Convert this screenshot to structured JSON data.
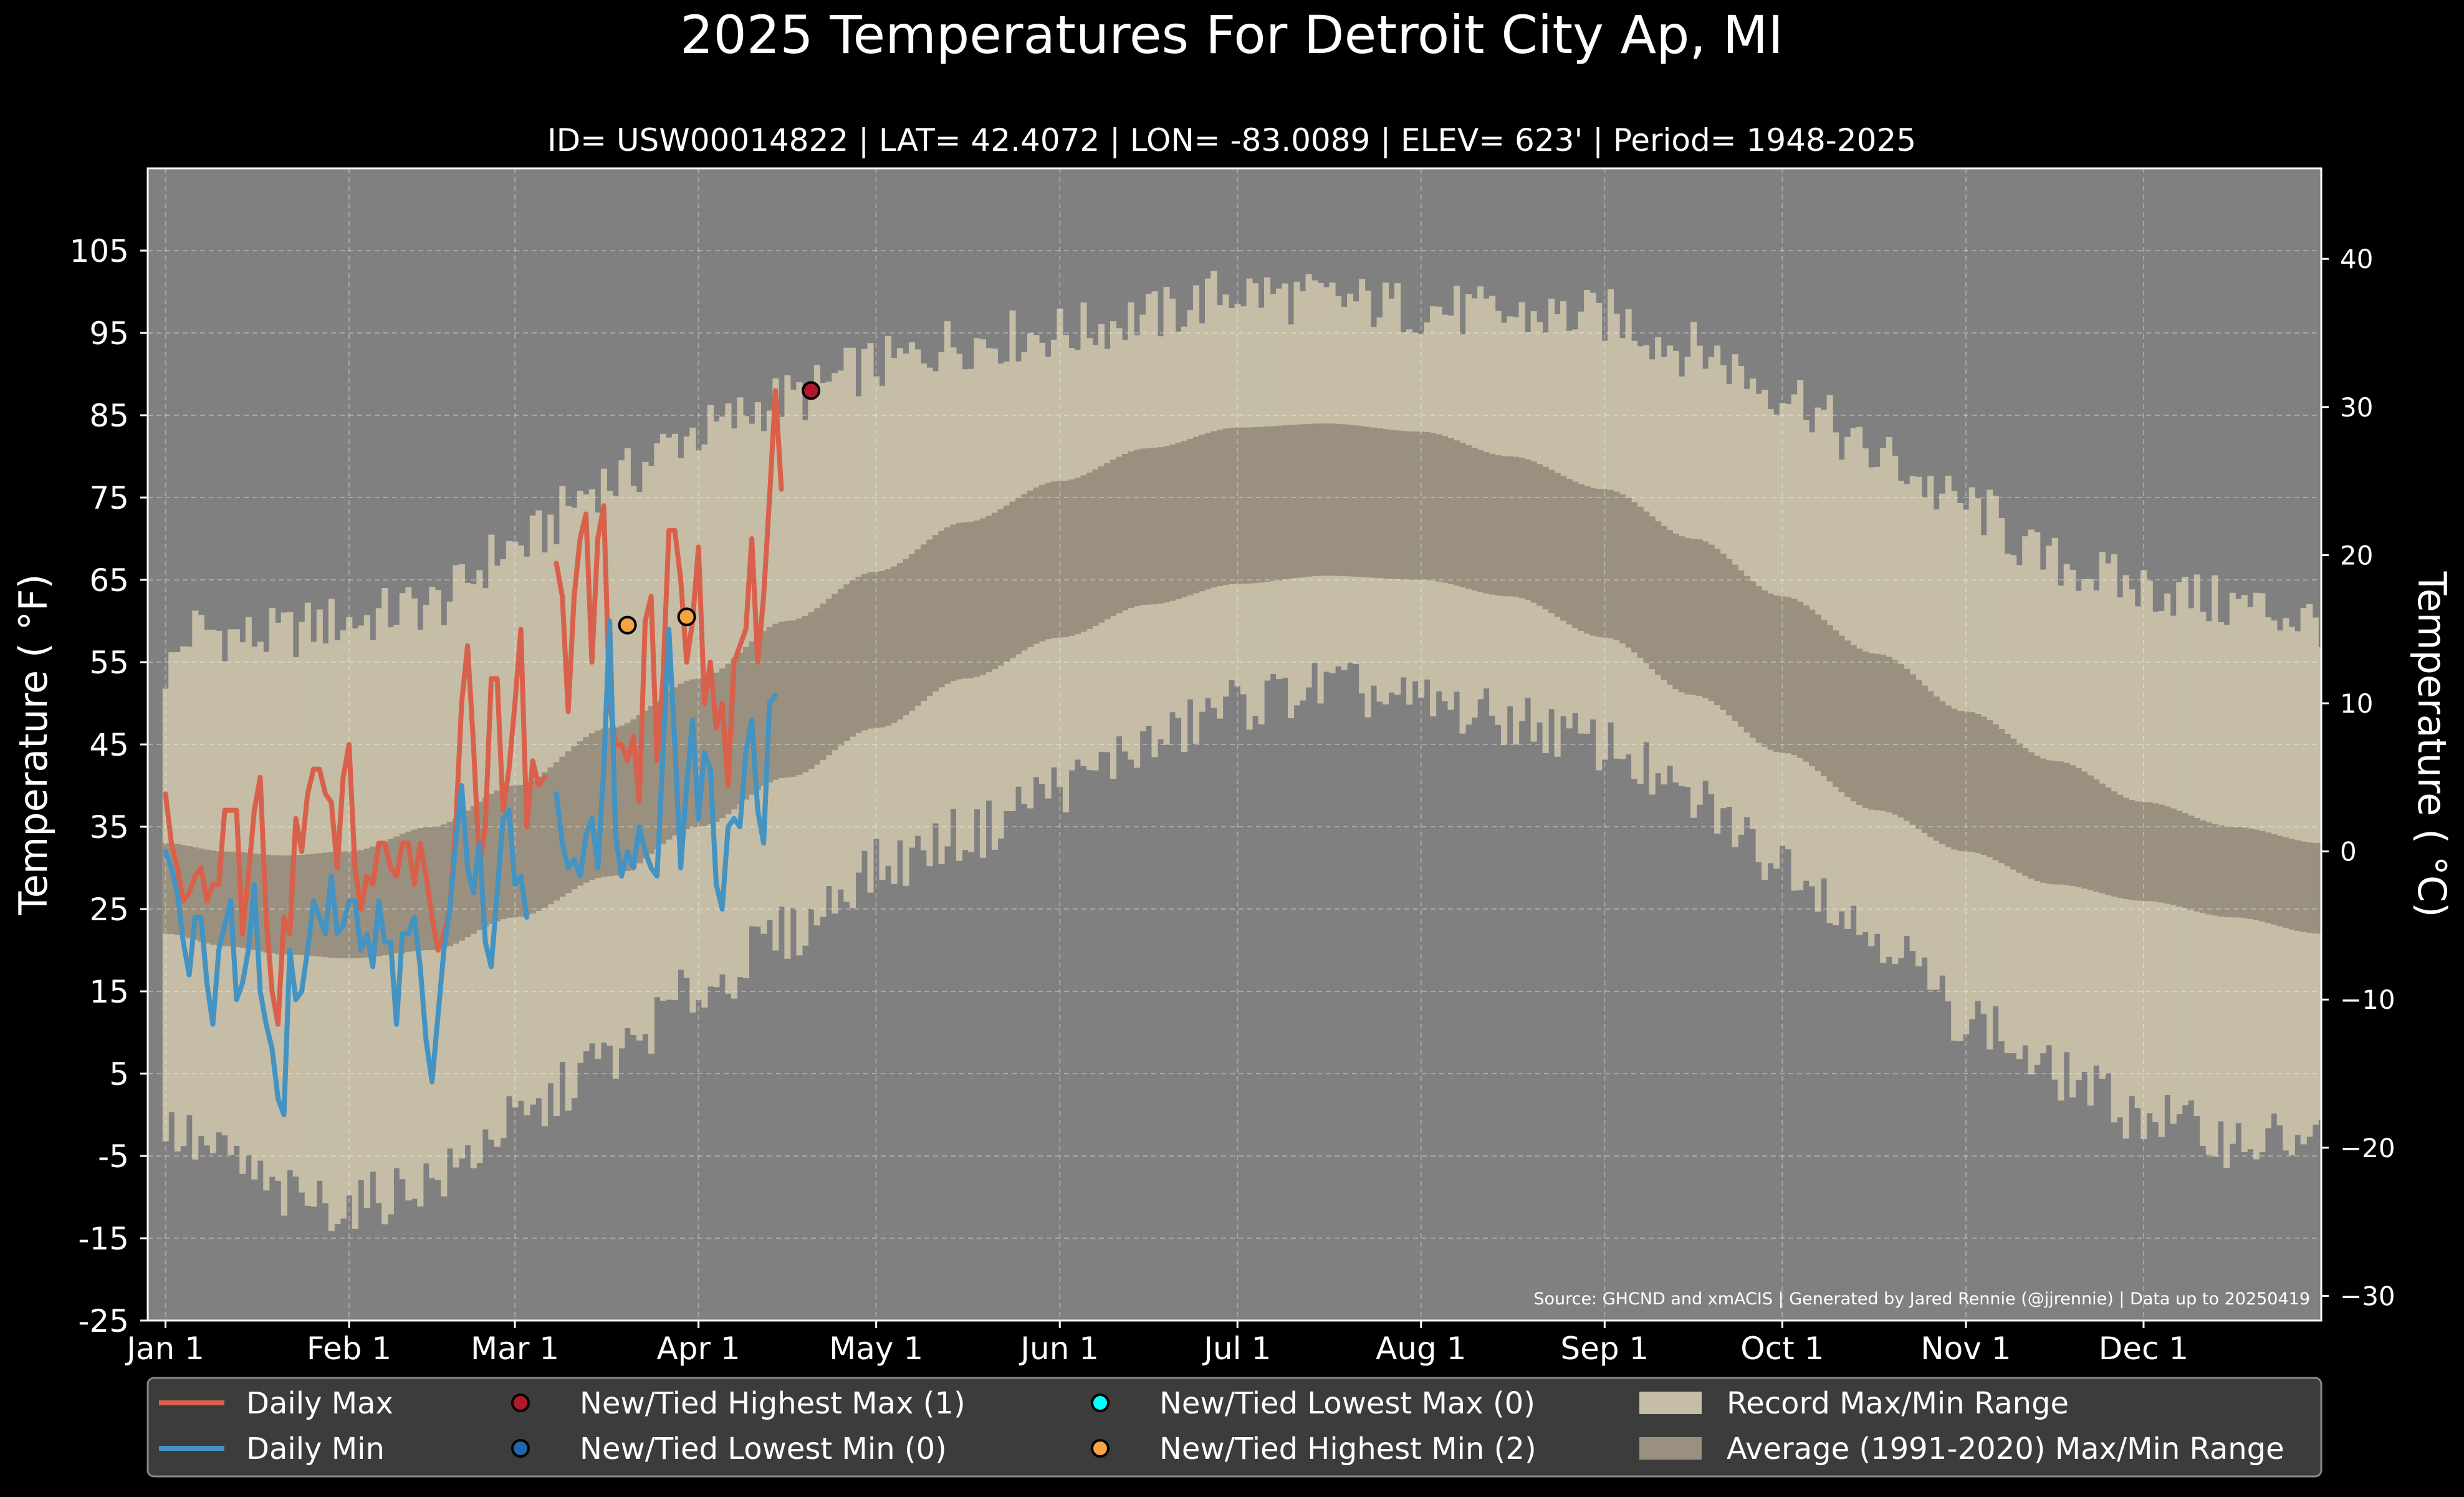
{
  "colors": {
    "background": "#000000",
    "plot_bg": "#808080",
    "record_band": "#c5bda6",
    "normal_band": "#9a907f",
    "daily_max": "#d9614b",
    "daily_min": "#4393c3",
    "record_high_max_marker": "#b2182b",
    "record_low_min_marker": "#2166ac",
    "record_low_max_marker": "#00ffff",
    "record_high_min_marker": "#f4a442",
    "text": "#ffffff",
    "legend_bg": "#3c3c3c"
  },
  "chart_data": {
    "type": "line",
    "title": "2025 Temperatures For Detroit City Ap, MI",
    "subtitle": "ID= USW00014822 | LAT= 42.4072 | LON= -83.0089 | ELEV= 623' | Period= 1948-2025",
    "ylabel": "Temperature ($^\\circ$F)",
    "ylabel_display": "Temperature ( °F)",
    "y2label_display": "Temperature ( °C)",
    "source": "Source: GHCND and xmACIS | Generated by Jared Rennie (@jjrennie) | Data up to 20250419",
    "ylim": [
      -25,
      115
    ],
    "xlim_days": [
      -3,
      364
    ],
    "grid": true,
    "legend_position": "bottom",
    "x_tick_labels": [
      "Jan 1",
      "Feb 1",
      "Mar 1",
      "Apr 1",
      "May 1",
      "Jun 1",
      "Jul 1",
      "Aug 1",
      "Sep 1",
      "Oct 1",
      "Nov 1",
      "Dec 1"
    ],
    "x_tick_days": [
      0,
      31,
      59,
      90,
      120,
      151,
      181,
      212,
      243,
      273,
      304,
      334
    ],
    "y_ticks": [
      105,
      95,
      85,
      75,
      65,
      55,
      45,
      35,
      25,
      15,
      5,
      -5,
      -15,
      -25
    ],
    "y2_ticks": [
      40,
      30,
      20,
      10,
      0,
      -10,
      -20,
      -30
    ],
    "record_max_anchors": [
      [
        0,
        54
      ],
      [
        5,
        59
      ],
      [
        15,
        58
      ],
      [
        31,
        60
      ],
      [
        45,
        62
      ],
      [
        59,
        69
      ],
      [
        75,
        77
      ],
      [
        90,
        83
      ],
      [
        105,
        87
      ],
      [
        120,
        91
      ],
      [
        135,
        94
      ],
      [
        151,
        95
      ],
      [
        166,
        97
      ],
      [
        181,
        100
      ],
      [
        196,
        99
      ],
      [
        212,
        98
      ],
      [
        227,
        97
      ],
      [
        243,
        97
      ],
      [
        258,
        93
      ],
      [
        273,
        88
      ],
      [
        289,
        80
      ],
      [
        304,
        74
      ],
      [
        319,
        67
      ],
      [
        334,
        64
      ],
      [
        349,
        62
      ],
      [
        364,
        60
      ]
    ],
    "record_min_anchors": [
      [
        0,
        -2
      ],
      [
        10,
        -5
      ],
      [
        20,
        -10
      ],
      [
        31,
        -11
      ],
      [
        45,
        -8
      ],
      [
        59,
        -1
      ],
      [
        75,
        7
      ],
      [
        90,
        15
      ],
      [
        105,
        22
      ],
      [
        120,
        30
      ],
      [
        135,
        34
      ],
      [
        151,
        40
      ],
      [
        166,
        45
      ],
      [
        181,
        50
      ],
      [
        196,
        52
      ],
      [
        212,
        50
      ],
      [
        227,
        48
      ],
      [
        243,
        45
      ],
      [
        258,
        38
      ],
      [
        273,
        31
      ],
      [
        289,
        22
      ],
      [
        304,
        12
      ],
      [
        319,
        5
      ],
      [
        334,
        0
      ],
      [
        349,
        -3
      ],
      [
        364,
        -3
      ]
    ],
    "avg_max_anchors": [
      [
        0,
        33
      ],
      [
        10,
        32
      ],
      [
        20,
        31.5
      ],
      [
        31,
        32
      ],
      [
        45,
        35
      ],
      [
        59,
        40
      ],
      [
        75,
        47
      ],
      [
        90,
        53
      ],
      [
        105,
        60
      ],
      [
        120,
        66
      ],
      [
        135,
        72
      ],
      [
        151,
        77
      ],
      [
        166,
        81
      ],
      [
        181,
        83.5
      ],
      [
        196,
        84
      ],
      [
        212,
        83
      ],
      [
        227,
        80
      ],
      [
        243,
        76
      ],
      [
        258,
        70
      ],
      [
        273,
        63
      ],
      [
        289,
        56
      ],
      [
        304,
        49
      ],
      [
        319,
        43
      ],
      [
        334,
        38
      ],
      [
        349,
        35
      ],
      [
        364,
        33
      ]
    ],
    "avg_min_anchors": [
      [
        0,
        22
      ],
      [
        10,
        20.5
      ],
      [
        20,
        19.5
      ],
      [
        31,
        19
      ],
      [
        45,
        20
      ],
      [
        59,
        24
      ],
      [
        75,
        29
      ],
      [
        90,
        35
      ],
      [
        105,
        41
      ],
      [
        120,
        47
      ],
      [
        135,
        53
      ],
      [
        151,
        58
      ],
      [
        166,
        62
      ],
      [
        181,
        64.5
      ],
      [
        196,
        65.5
      ],
      [
        212,
        65
      ],
      [
        227,
        63
      ],
      [
        243,
        58
      ],
      [
        258,
        51
      ],
      [
        273,
        44
      ],
      [
        289,
        37
      ],
      [
        304,
        32
      ],
      [
        319,
        28
      ],
      [
        334,
        26
      ],
      [
        349,
        24
      ],
      [
        364,
        22
      ]
    ],
    "series": [
      {
        "name": "Daily Max",
        "start_day": 0,
        "values": [
          39,
          33,
          30,
          26,
          27,
          29,
          30,
          26,
          28,
          28,
          37,
          37,
          37,
          22,
          29,
          37,
          41,
          24,
          15,
          11,
          24,
          22,
          36,
          32,
          39,
          42,
          42,
          39,
          38,
          30,
          41,
          45,
          30,
          25,
          29,
          28,
          33,
          33,
          30,
          29,
          33,
          33,
          28,
          33,
          29,
          24,
          20,
          22,
          25,
          35,
          50,
          57,
          45,
          30,
          35,
          53,
          53,
          37,
          42,
          50,
          59,
          35,
          43,
          40,
          41,
          null,
          67,
          63,
          49,
          63,
          70,
          73,
          55,
          70,
          74,
          50,
          45,
          45,
          43,
          46,
          38,
          60,
          63,
          43,
          53,
          71,
          71,
          65,
          55,
          60,
          69,
          50,
          55,
          47,
          50,
          40,
          55,
          57,
          59,
          70,
          55,
          63,
          75,
          88,
          76
        ]
      },
      {
        "name": "Daily Min",
        "start_day": 0,
        "values": [
          32,
          30,
          27,
          21,
          17,
          24,
          24,
          16,
          11,
          20,
          23,
          26,
          14,
          16,
          20,
          28,
          15,
          11,
          8,
          2,
          0,
          20,
          14,
          15,
          20,
          26,
          24,
          22,
          29,
          22,
          23,
          26,
          26,
          20,
          22,
          18,
          26,
          21,
          21,
          11,
          22,
          22,
          24,
          18,
          9,
          4,
          12,
          20,
          25,
          33,
          40,
          30,
          27,
          33,
          21,
          18,
          27,
          36,
          37,
          28,
          29,
          24,
          null,
          null,
          null,
          null,
          39,
          33,
          30,
          31,
          29,
          34,
          36,
          30,
          42,
          60,
          34,
          29,
          32,
          30,
          35,
          32,
          30,
          29,
          44,
          59,
          45,
          30,
          40,
          48,
          36,
          44,
          42,
          28,
          25,
          35,
          36,
          35,
          44,
          48,
          37,
          33,
          50,
          51
        ]
      }
    ],
    "record_points": [
      {
        "kind": "high_max",
        "day": 109,
        "value": 88
      },
      {
        "kind": "high_min",
        "day": 78,
        "value": 59.5
      },
      {
        "kind": "high_min",
        "day": 88,
        "value": 60.5
      }
    ],
    "legend": [
      {
        "key": "daily_max",
        "label": "Daily Max",
        "swatch": "line"
      },
      {
        "key": "daily_min",
        "label": "Daily Min",
        "swatch": "line"
      },
      {
        "key": "record_high_max_marker",
        "label": "New/Tied Highest Max (1)",
        "swatch": "dot"
      },
      {
        "key": "record_low_min_marker",
        "label": "New/Tied Lowest Min (0)",
        "swatch": "dot"
      },
      {
        "key": "record_low_max_marker",
        "label": "New/Tied Lowest Max (0)",
        "swatch": "dot"
      },
      {
        "key": "record_high_min_marker",
        "label": "New/Tied Highest Min (2)",
        "swatch": "dot"
      },
      {
        "key": "record_band",
        "label": "Record Max/Min Range",
        "swatch": "box"
      },
      {
        "key": "normal_band",
        "label": "Average (1991-2020) Max/Min Range",
        "swatch": "box"
      }
    ]
  }
}
